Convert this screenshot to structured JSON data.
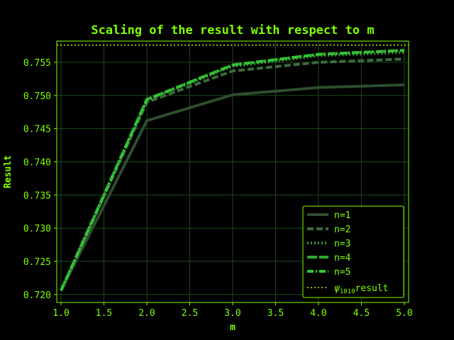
{
  "chart_data": {
    "type": "line",
    "title": "Scaling of the result with respect to m",
    "xlabel": "m",
    "ylabel": "Result",
    "x": [
      1.0,
      2.0,
      3.0,
      4.0,
      5.0
    ],
    "xlim": [
      0.95,
      5.05
    ],
    "ylim": [
      0.7188,
      0.7582
    ],
    "xticks": [
      "1.0",
      "1.5",
      "2.0",
      "2.5",
      "3.0",
      "3.5",
      "4.0",
      "4.5",
      "5.0"
    ],
    "yticks": [
      "0.720",
      "0.725",
      "0.730",
      "0.735",
      "0.740",
      "0.745",
      "0.750",
      "0.755"
    ],
    "grid": true,
    "legend_position": "lower-right",
    "series": [
      {
        "name": "n=1",
        "values": [
          0.7206,
          0.7462,
          0.7501,
          0.7512,
          0.7516
        ],
        "color": "#2e4d2e",
        "dash": "solid"
      },
      {
        "name": "n=2",
        "values": [
          0.7206,
          0.749,
          0.7537,
          0.755,
          0.7555
        ],
        "color": "#3b6b3b",
        "dash": "dashed"
      },
      {
        "name": "n=3",
        "values": [
          0.7206,
          0.7493,
          0.7544,
          0.756,
          0.7565
        ],
        "color": "#3e8a3e",
        "dash": "dotted"
      },
      {
        "name": "n=4",
        "values": [
          0.7206,
          0.7494,
          0.7546,
          0.7562,
          0.7568
        ],
        "color": "#2ea82e",
        "dash": "longdash"
      },
      {
        "name": "n=5",
        "values": [
          0.7206,
          0.7494,
          0.7546,
          0.7562,
          0.7568
        ],
        "color": "#33c433",
        "dash": "dashdot"
      }
    ],
    "reference_line": {
      "name_prefix": "ψ",
      "name_sub": "1010",
      "name_suffix": "result",
      "value": 0.7576,
      "color": "#b5ff00"
    },
    "colors": {
      "background": "#000000",
      "frame": "#7fff00",
      "text": "#7fff00",
      "grid": "#1c4a1c"
    }
  }
}
